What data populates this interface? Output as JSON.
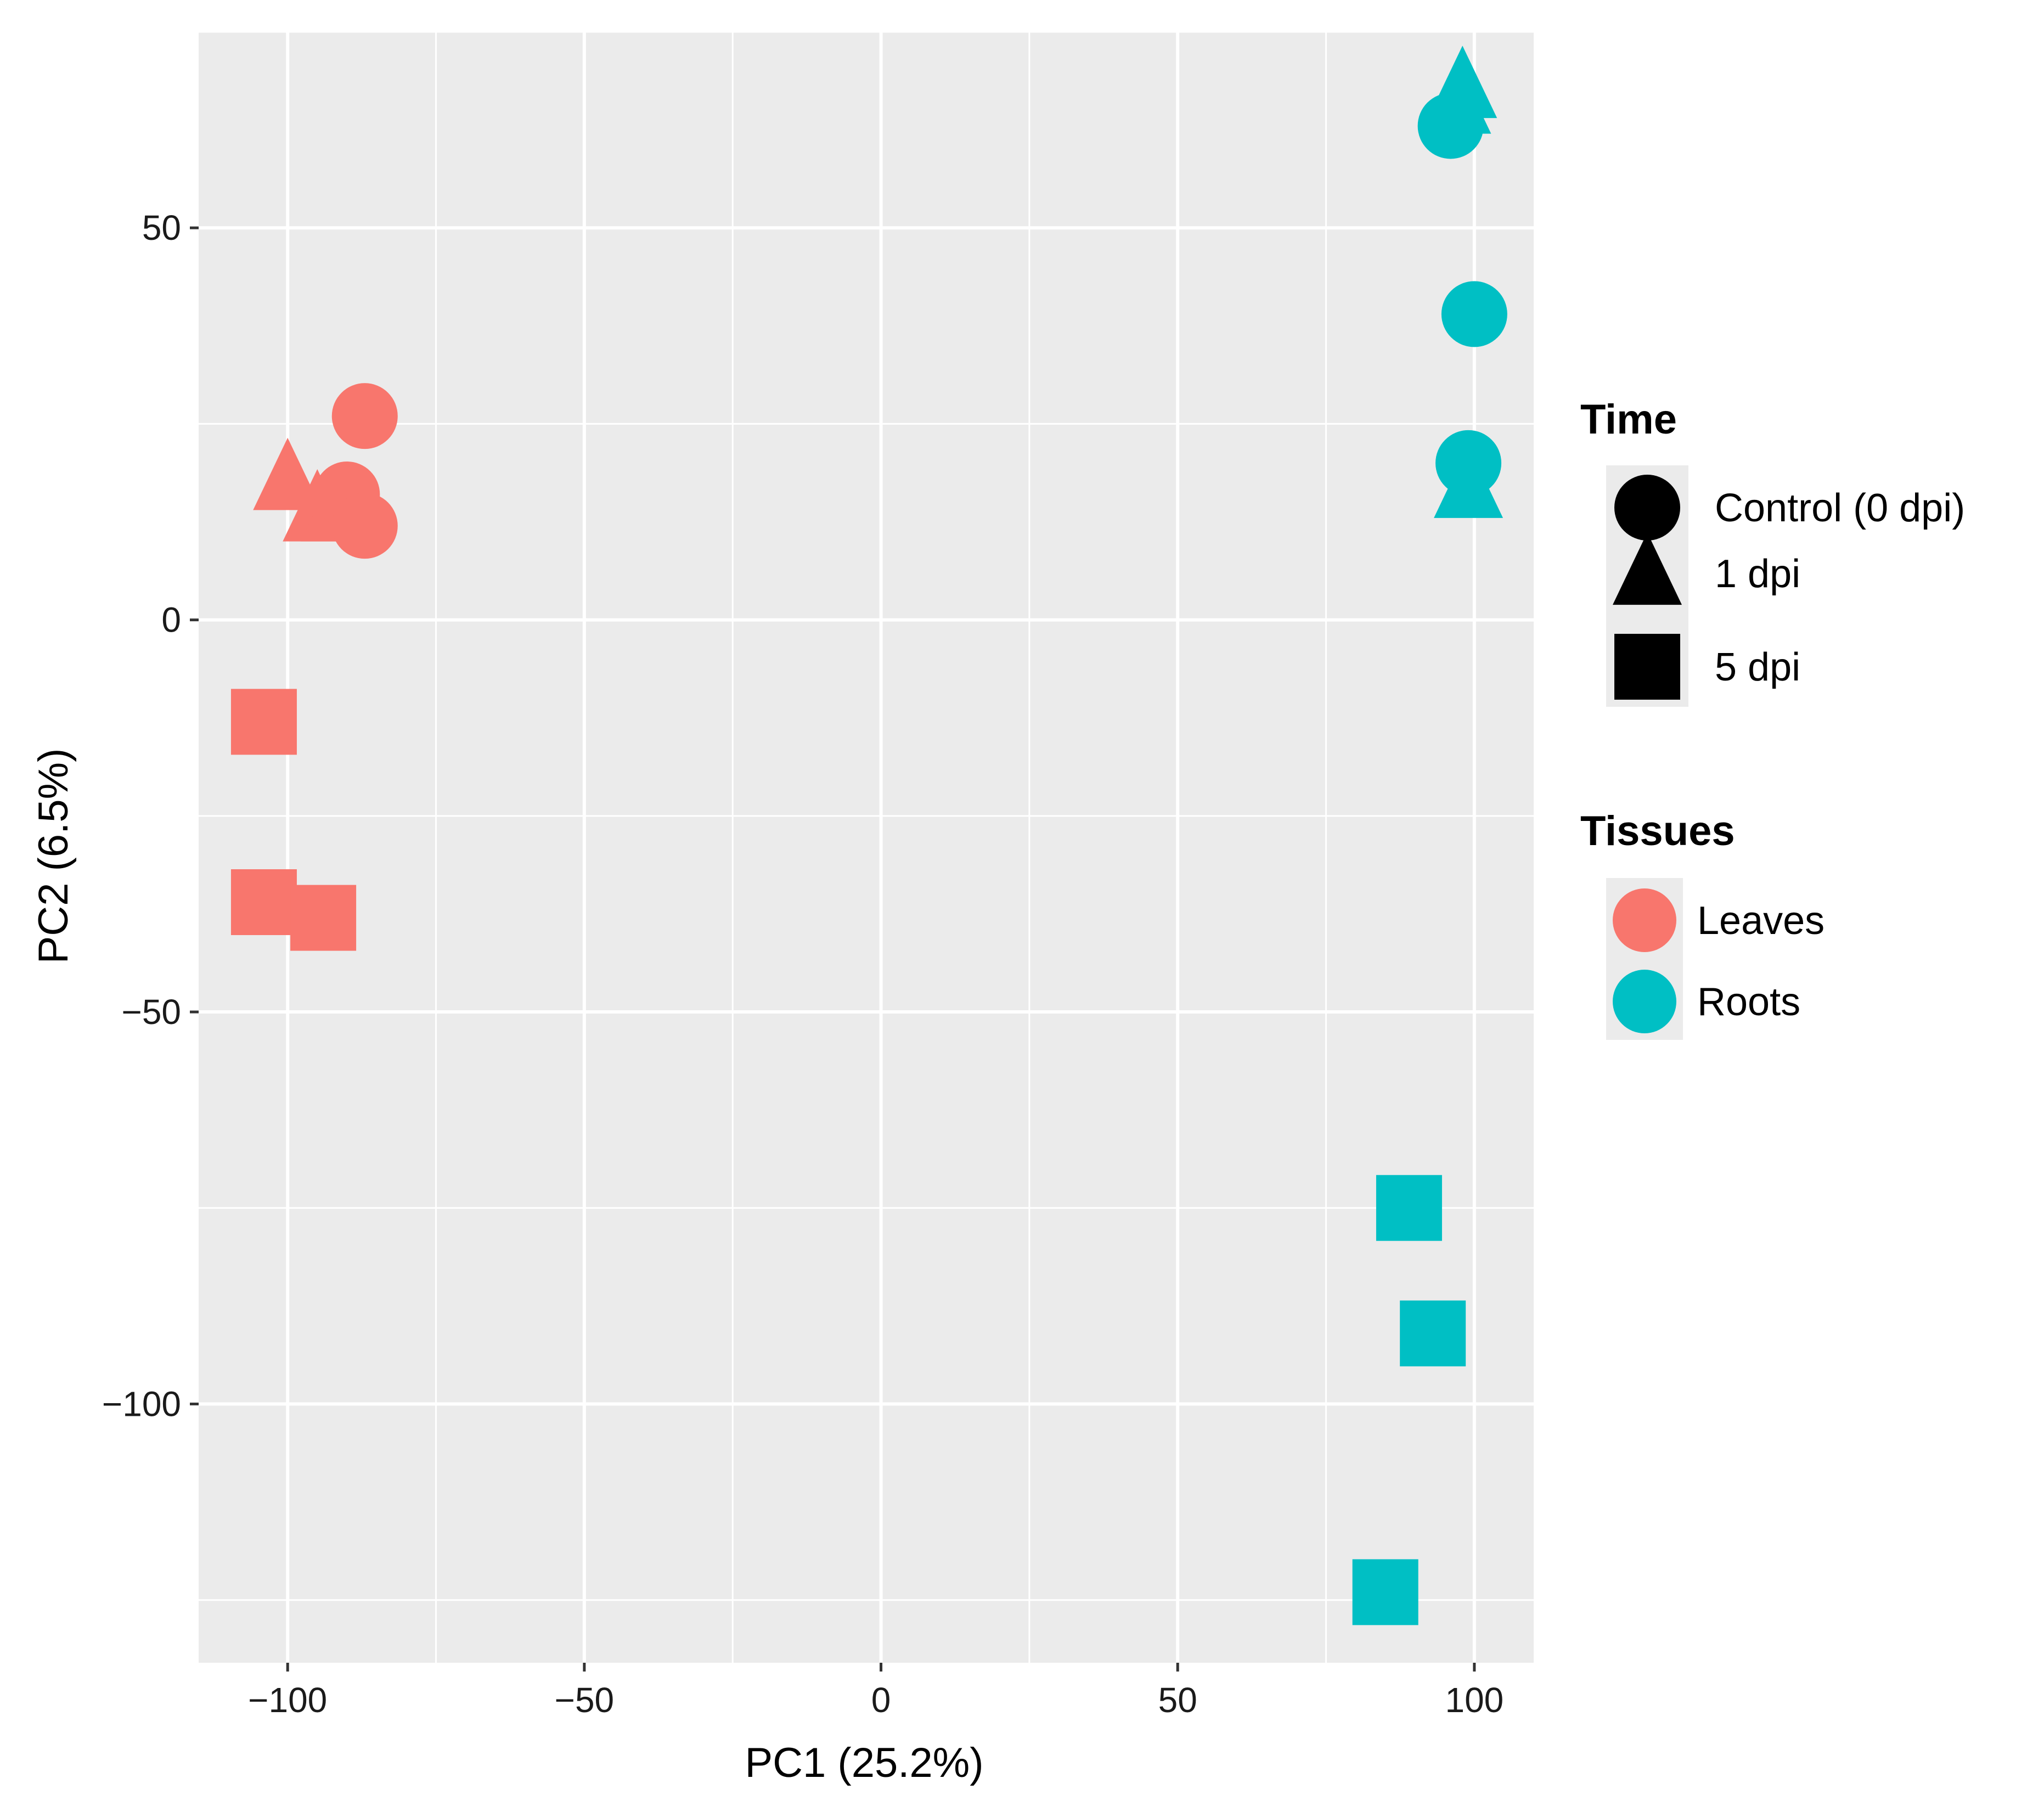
{
  "chart_data": {
    "type": "scatter",
    "title": "",
    "xlabel": "PC1 (25.2%)",
    "ylabel": "PC2 (6.5%)",
    "xlim": [
      -115,
      110
    ],
    "ylim": [
      -133,
      75
    ],
    "x_ticks": [
      -100,
      -50,
      0,
      50,
      100
    ],
    "y_ticks": [
      -100,
      -50,
      0,
      50
    ],
    "x_tick_labels": [
      "−100",
      "−50",
      "0",
      "50",
      "100"
    ],
    "y_tick_labels": [
      "−100",
      "−50",
      "0",
      "50"
    ],
    "grid": true,
    "legend": {
      "position": "right",
      "shape": {
        "title": "Time",
        "entries": [
          {
            "label": "Control (0 dpi)",
            "shape": "circle"
          },
          {
            "label": "1 dpi",
            "shape": "triangle"
          },
          {
            "label": "5 dpi",
            "shape": "square"
          }
        ]
      },
      "color": {
        "title": "Tissues",
        "entries": [
          {
            "label": "Leaves",
            "color": "#F8766D"
          },
          {
            "label": "Roots",
            "color": "#00BFC4"
          }
        ]
      }
    },
    "series": [
      {
        "name": "Leaves",
        "color": "#F8766D",
        "points": [
          {
            "x": -100,
            "y": 18,
            "time": "1 dpi"
          },
          {
            "x": -95,
            "y": 14,
            "time": "1 dpi"
          },
          {
            "x": -92,
            "y": 14,
            "time": "1 dpi"
          },
          {
            "x": -87,
            "y": 26,
            "time": "Control (0 dpi)"
          },
          {
            "x": -90,
            "y": 16,
            "time": "Control (0 dpi)"
          },
          {
            "x": -87,
            "y": 12,
            "time": "Control (0 dpi)"
          },
          {
            "x": -104,
            "y": -13,
            "time": "5 dpi"
          },
          {
            "x": -104,
            "y": -36,
            "time": "5 dpi"
          },
          {
            "x": -94,
            "y": -38,
            "time": "5 dpi"
          }
        ]
      },
      {
        "name": "Roots",
        "color": "#00BFC4",
        "points": [
          {
            "x": 96,
            "y": 63,
            "time": "Control (0 dpi)"
          },
          {
            "x": 100,
            "y": 39,
            "time": "Control (0 dpi)"
          },
          {
            "x": 99,
            "y": 20,
            "time": "Control (0 dpi)"
          },
          {
            "x": 98,
            "y": 68,
            "time": "1 dpi"
          },
          {
            "x": 97,
            "y": 66,
            "time": "1 dpi"
          },
          {
            "x": 99,
            "y": 17,
            "time": "1 dpi"
          },
          {
            "x": 89,
            "y": -75,
            "time": "5 dpi"
          },
          {
            "x": 93,
            "y": -91,
            "time": "5 dpi"
          },
          {
            "x": 85,
            "y": -124,
            "time": "5 dpi"
          }
        ]
      }
    ]
  }
}
